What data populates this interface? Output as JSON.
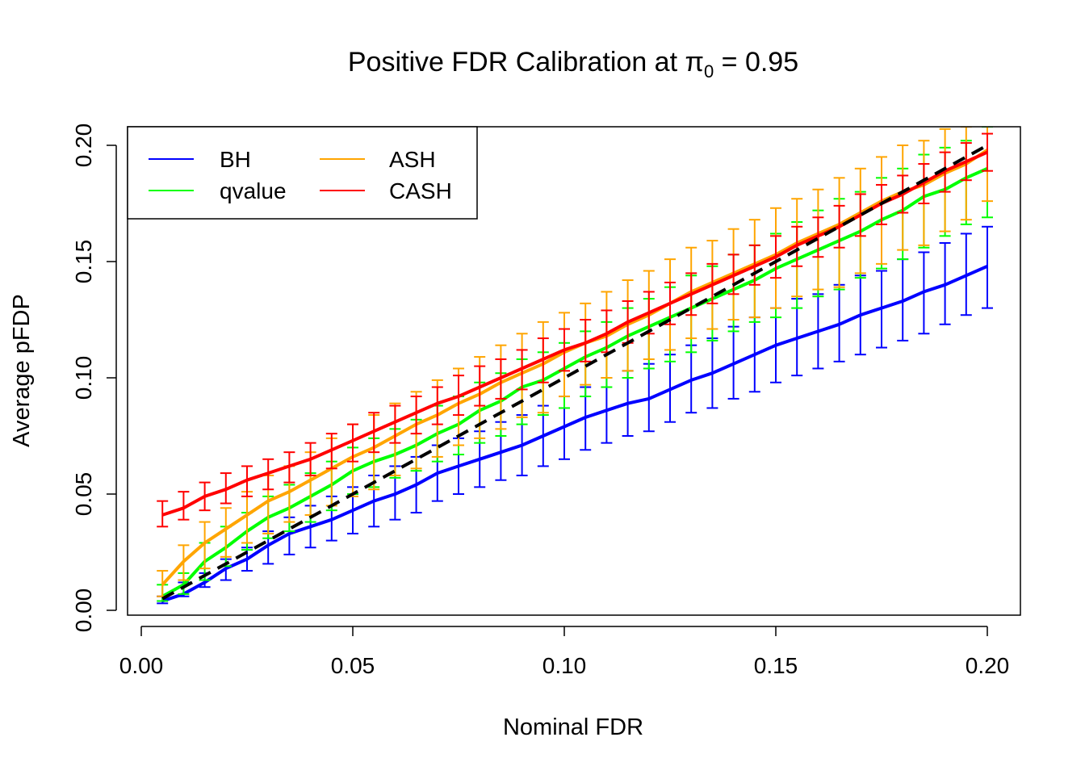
{
  "chart_data": {
    "type": "line",
    "title_prefix": "Positive FDR Calibration at ",
    "title_symbol": "π",
    "title_subscript": "0",
    "title_suffix": " = 0.95",
    "xlabel": "Nominal FDR",
    "ylabel": "Average pFDP",
    "xlim": [
      0.0,
      0.2
    ],
    "ylim": [
      0.0,
      0.2
    ],
    "x_ticks": [
      "0.00",
      "0.05",
      "0.10",
      "0.15",
      "0.20"
    ],
    "y_ticks": [
      "0.00",
      "0.05",
      "0.10",
      "0.15",
      "0.20"
    ],
    "grid": false,
    "legend": {
      "position": "top-left",
      "columns": 2,
      "order": [
        "BH",
        "qvalue",
        "ASH",
        "CASH"
      ]
    },
    "x": [
      0.005,
      0.01,
      0.015,
      0.02,
      0.025,
      0.03,
      0.035,
      0.04,
      0.045,
      0.05,
      0.055,
      0.06,
      0.065,
      0.07,
      0.075,
      0.08,
      0.085,
      0.09,
      0.095,
      0.1,
      0.105,
      0.11,
      0.115,
      0.12,
      0.125,
      0.13,
      0.135,
      0.14,
      0.145,
      0.15,
      0.155,
      0.16,
      0.165,
      0.17,
      0.175,
      0.18,
      0.185,
      0.19,
      0.195,
      0.2
    ],
    "reference_line": {
      "style": "dashed",
      "color": "#000000",
      "from": [
        0.005,
        0.005
      ],
      "to": [
        0.2,
        0.2
      ]
    },
    "series": [
      {
        "name": "BH",
        "color": "#0000ff",
        "values": [
          0.004,
          0.007,
          0.012,
          0.018,
          0.022,
          0.028,
          0.033,
          0.036,
          0.039,
          0.043,
          0.047,
          0.05,
          0.054,
          0.059,
          0.062,
          0.065,
          0.068,
          0.071,
          0.075,
          0.079,
          0.083,
          0.086,
          0.089,
          0.091,
          0.095,
          0.099,
          0.102,
          0.106,
          0.11,
          0.114,
          0.117,
          0.12,
          0.123,
          0.127,
          0.13,
          0.133,
          0.137,
          0.14,
          0.144,
          0.148
        ],
        "lower": [
          0.003,
          0.006,
          0.01,
          0.013,
          0.017,
          0.02,
          0.024,
          0.027,
          0.03,
          0.033,
          0.036,
          0.039,
          0.042,
          0.047,
          0.05,
          0.053,
          0.056,
          0.058,
          0.062,
          0.065,
          0.069,
          0.072,
          0.075,
          0.077,
          0.081,
          0.085,
          0.087,
          0.091,
          0.094,
          0.098,
          0.101,
          0.104,
          0.107,
          0.11,
          0.113,
          0.116,
          0.119,
          0.123,
          0.127,
          0.13
        ],
        "upper": [
          0.006,
          0.012,
          0.016,
          0.022,
          0.027,
          0.034,
          0.04,
          0.045,
          0.049,
          0.053,
          0.058,
          0.062,
          0.066,
          0.071,
          0.074,
          0.077,
          0.081,
          0.084,
          0.088,
          0.092,
          0.096,
          0.1,
          0.103,
          0.106,
          0.11,
          0.114,
          0.117,
          0.122,
          0.126,
          0.13,
          0.134,
          0.136,
          0.14,
          0.144,
          0.146,
          0.151,
          0.154,
          0.158,
          0.162,
          0.165
        ]
      },
      {
        "name": "qvalue",
        "color": "#00ff00",
        "values": [
          0.006,
          0.011,
          0.021,
          0.027,
          0.034,
          0.04,
          0.044,
          0.049,
          0.054,
          0.06,
          0.064,
          0.067,
          0.071,
          0.076,
          0.08,
          0.086,
          0.09,
          0.096,
          0.099,
          0.104,
          0.109,
          0.113,
          0.118,
          0.122,
          0.126,
          0.13,
          0.134,
          0.138,
          0.142,
          0.147,
          0.151,
          0.155,
          0.159,
          0.163,
          0.168,
          0.172,
          0.178,
          0.181,
          0.186,
          0.19
        ],
        "lower": [
          0.004,
          0.007,
          0.013,
          0.019,
          0.026,
          0.031,
          0.034,
          0.038,
          0.043,
          0.05,
          0.053,
          0.057,
          0.06,
          0.064,
          0.067,
          0.072,
          0.075,
          0.08,
          0.084,
          0.087,
          0.092,
          0.096,
          0.1,
          0.104,
          0.107,
          0.111,
          0.116,
          0.12,
          0.124,
          0.126,
          0.13,
          0.135,
          0.138,
          0.143,
          0.147,
          0.151,
          0.156,
          0.161,
          0.166,
          0.169
        ],
        "upper": [
          0.011,
          0.016,
          0.029,
          0.036,
          0.042,
          0.049,
          0.054,
          0.059,
          0.064,
          0.07,
          0.074,
          0.078,
          0.082,
          0.088,
          0.092,
          0.098,
          0.102,
          0.108,
          0.111,
          0.115,
          0.12,
          0.124,
          0.13,
          0.134,
          0.139,
          0.144,
          0.148,
          0.153,
          0.157,
          0.162,
          0.167,
          0.172,
          0.177,
          0.18,
          0.186,
          0.19,
          0.196,
          0.199,
          0.202,
          0.208
        ]
      },
      {
        "name": "ASH",
        "color": "#ffa500",
        "values": [
          0.011,
          0.021,
          0.029,
          0.035,
          0.041,
          0.047,
          0.051,
          0.056,
          0.061,
          0.066,
          0.07,
          0.075,
          0.08,
          0.084,
          0.089,
          0.093,
          0.098,
          0.102,
          0.106,
          0.111,
          0.115,
          0.118,
          0.123,
          0.127,
          0.132,
          0.137,
          0.141,
          0.145,
          0.149,
          0.153,
          0.158,
          0.162,
          0.166,
          0.171,
          0.176,
          0.18,
          0.183,
          0.188,
          0.192,
          0.198
        ],
        "lower": [
          0.006,
          0.013,
          0.018,
          0.023,
          0.029,
          0.033,
          0.038,
          0.041,
          0.045,
          0.049,
          0.052,
          0.058,
          0.061,
          0.066,
          0.071,
          0.074,
          0.078,
          0.083,
          0.085,
          0.092,
          0.097,
          0.1,
          0.103,
          0.108,
          0.112,
          0.117,
          0.121,
          0.125,
          0.126,
          0.13,
          0.135,
          0.138,
          0.139,
          0.145,
          0.149,
          0.155,
          0.157,
          0.163,
          0.168,
          0.176
        ],
        "upper": [
          0.017,
          0.028,
          0.038,
          0.044,
          0.051,
          0.058,
          0.062,
          0.068,
          0.074,
          0.08,
          0.084,
          0.089,
          0.094,
          0.099,
          0.104,
          0.109,
          0.114,
          0.119,
          0.124,
          0.128,
          0.132,
          0.137,
          0.142,
          0.146,
          0.151,
          0.156,
          0.159,
          0.164,
          0.168,
          0.173,
          0.177,
          0.181,
          0.186,
          0.19,
          0.195,
          0.2,
          0.202,
          0.207,
          0.208,
          0.21
        ]
      },
      {
        "name": "CASH",
        "color": "#ff0000",
        "values": [
          0.041,
          0.044,
          0.049,
          0.052,
          0.056,
          0.059,
          0.062,
          0.065,
          0.069,
          0.073,
          0.077,
          0.081,
          0.085,
          0.089,
          0.092,
          0.096,
          0.1,
          0.104,
          0.108,
          0.112,
          0.115,
          0.119,
          0.124,
          0.128,
          0.132,
          0.136,
          0.14,
          0.144,
          0.148,
          0.152,
          0.157,
          0.161,
          0.165,
          0.17,
          0.175,
          0.179,
          0.184,
          0.189,
          0.193,
          0.197
        ],
        "lower": [
          0.036,
          0.039,
          0.043,
          0.046,
          0.049,
          0.052,
          0.055,
          0.058,
          0.061,
          0.064,
          0.068,
          0.072,
          0.076,
          0.08,
          0.084,
          0.088,
          0.091,
          0.095,
          0.098,
          0.103,
          0.107,
          0.111,
          0.115,
          0.119,
          0.123,
          0.127,
          0.132,
          0.136,
          0.14,
          0.143,
          0.148,
          0.152,
          0.156,
          0.161,
          0.166,
          0.171,
          0.175,
          0.18,
          0.185,
          0.189
        ],
        "upper": [
          0.047,
          0.051,
          0.055,
          0.059,
          0.062,
          0.065,
          0.068,
          0.072,
          0.076,
          0.08,
          0.085,
          0.088,
          0.092,
          0.096,
          0.101,
          0.105,
          0.108,
          0.112,
          0.117,
          0.121,
          0.125,
          0.129,
          0.133,
          0.137,
          0.141,
          0.145,
          0.149,
          0.153,
          0.157,
          0.161,
          0.165,
          0.169,
          0.174,
          0.179,
          0.183,
          0.187,
          0.192,
          0.197,
          0.201,
          0.205
        ]
      }
    ]
  }
}
